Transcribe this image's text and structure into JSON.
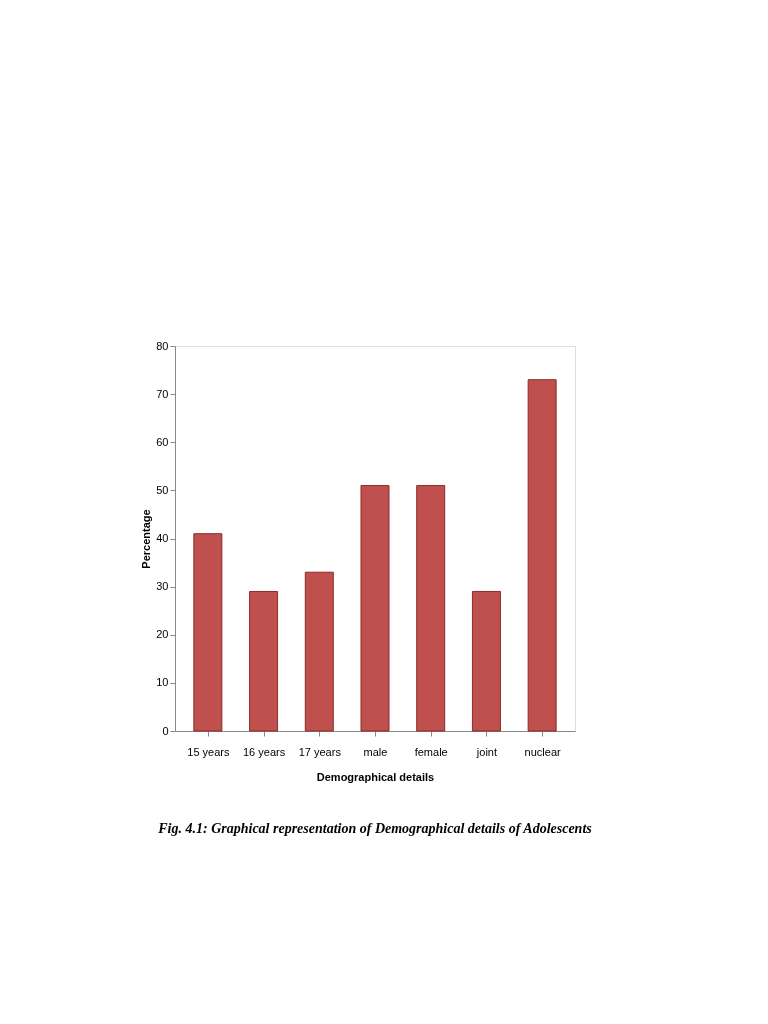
{
  "chart_data": {
    "type": "bar",
    "xlabel": "Demographical details",
    "ylabel": "Percentage",
    "categories": [
      "15 years",
      "16 years",
      "17 years",
      "male",
      "female",
      "joint",
      "nuclear"
    ],
    "values": [
      41,
      29,
      33,
      51,
      51,
      29,
      73
    ],
    "color": "#c0504d",
    "ylim": [
      0,
      80
    ],
    "yticks": [
      0,
      10,
      20,
      30,
      40,
      50,
      60,
      70,
      80
    ],
    "grid": false,
    "annotations": [
      "Fig. 4.1: Graphical representation of Demographical details of Adolescents"
    ]
  }
}
